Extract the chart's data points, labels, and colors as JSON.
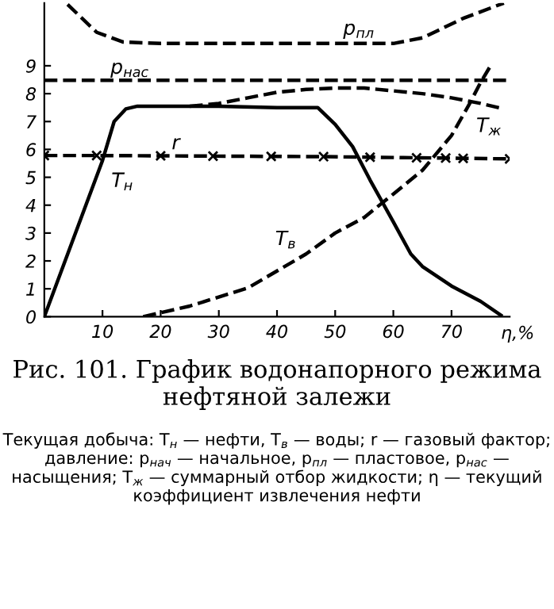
{
  "chart_data": {
    "type": "line",
    "title": "Рис. 101. График водонапорного режима нефтяной залежи",
    "annotations": [
      "Текущая добыча: T$_{н}$ — нефти, T$_{в}$ — воды; r — газовый фактор; давление: p$_{нач}$ — начальное, p$_{пл}$ — пластовое, p$_{нас}$ — насыщения; T$_{ж}$ — суммарный отбор жидкости; η — текущий коэффициент извлечения нефти"
    ],
    "xlabel": "η,%",
    "xlim": [
      0,
      80
    ],
    "ylim": [
      0,
      11.25
    ],
    "xticks": [
      10,
      20,
      30,
      40,
      50,
      60,
      70
    ],
    "yticks": [
      0,
      1,
      2,
      3,
      4,
      5,
      6,
      7,
      8,
      9
    ],
    "grid": false,
    "legend": false,
    "series": [
      {
        "name": "p$_{пл}$",
        "color": "#000000",
        "line_style": "dashed",
        "marker": "none",
        "x": [
          4,
          9,
          13.6,
          20,
          40,
          60,
          65,
          72,
          79
        ],
        "values": [
          11.2,
          10.2,
          9.85,
          9.8,
          9.8,
          9.8,
          10.0,
          10.7,
          11.25
        ]
      },
      {
        "name": "p$_{нас}$",
        "color": "#000000",
        "line_style": "dashed",
        "marker": "none",
        "x": [
          0,
          79.5
        ],
        "values": [
          8.48,
          8.48
        ]
      },
      {
        "name": "r",
        "color": "#000000",
        "line_style": "dashed",
        "marker": "cross",
        "x": [
          0,
          9,
          20,
          29,
          39,
          48,
          56,
          64,
          69,
          72,
          80
        ],
        "values": [
          5.78,
          5.78,
          5.77,
          5.76,
          5.75,
          5.74,
          5.72,
          5.7,
          5.69,
          5.68,
          5.66
        ]
      },
      {
        "name": "T$_{н}$",
        "color": "#000000",
        "line_style": "solid",
        "marker": "none",
        "x": [
          0,
          10,
          12,
          14,
          16,
          30,
          40,
          47,
          50,
          53,
          56,
          60,
          63,
          65,
          70,
          75,
          78.5
        ],
        "values": [
          0,
          5.6,
          7.0,
          7.45,
          7.55,
          7.55,
          7.5,
          7.5,
          6.9,
          6.1,
          4.9,
          3.4,
          2.25,
          1.8,
          1.1,
          0.55,
          0.05
        ]
      },
      {
        "name": "T$_{в}$",
        "color": "#000000",
        "line_style": "dashed",
        "marker": "none",
        "x": [
          17,
          25,
          35,
          45,
          50,
          55,
          60,
          65,
          70,
          73,
          75,
          77
        ],
        "values": [
          0,
          0.38,
          1.03,
          2.25,
          3.0,
          3.56,
          4.4,
          5.25,
          6.5,
          7.6,
          8.4,
          9.1
        ]
      },
      {
        "name": "T$_{ж}$",
        "color": "#000000",
        "line_style": "dashed",
        "marker": "none",
        "x": [
          25,
          30,
          35,
          40,
          45,
          50,
          55,
          60,
          65,
          70,
          75,
          79
        ],
        "values": [
          7.55,
          7.65,
          7.85,
          8.05,
          8.15,
          8.2,
          8.2,
          8.1,
          8.0,
          7.85,
          7.65,
          7.45
        ]
      }
    ]
  }
}
